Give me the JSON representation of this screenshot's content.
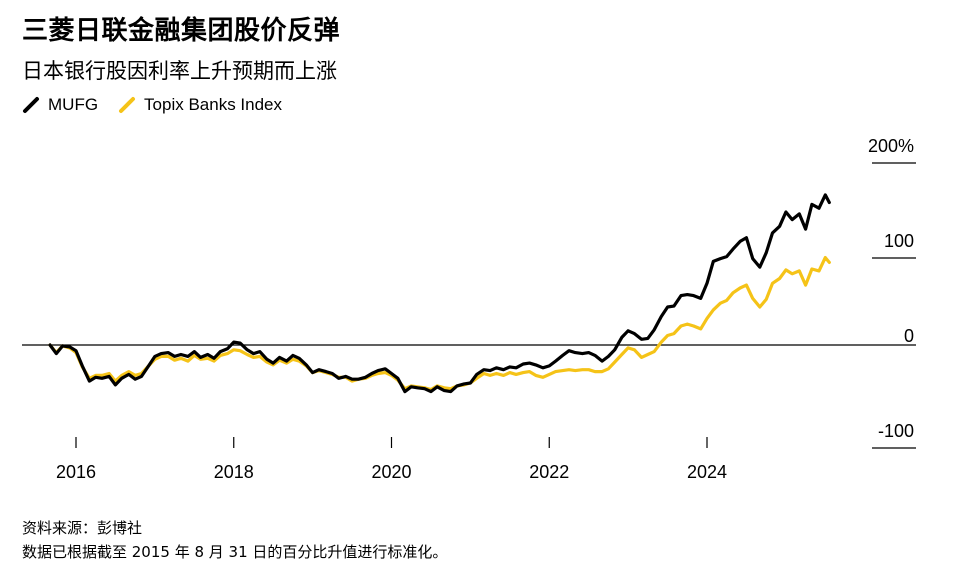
{
  "title": "三菱日联金融集团股价反弹",
  "subtitle": "日本银行股因利率上升预期而上涨",
  "source": "资料来源：彭博社",
  "note": "数据已根据截至 2015 年 8 月 31 日的百分比升值进行标准化。",
  "colors": {
    "mufg": "#000000",
    "topix": "#f5c318",
    "grid": "#000000",
    "zero": "#000000"
  },
  "chart_data": {
    "type": "line",
    "title": "三菱日联金融集团股价反弹",
    "subtitle": "日本银行股因利率上升预期而上涨",
    "xlim": [
      2015.6,
      2026.4
    ],
    "ylim": [
      -110,
      200
    ],
    "x_ticks": [
      {
        "value": 2016,
        "label": "2016"
      },
      {
        "value": 2018,
        "label": "2018"
      },
      {
        "value": 2020,
        "label": "2020"
      },
      {
        "value": 2022,
        "label": "2022"
      },
      {
        "value": 2024,
        "label": "2024"
      }
    ],
    "y_ticks": [
      {
        "value": 200,
        "label": "200%"
      },
      {
        "value": 100,
        "label": "100"
      },
      {
        "value": 0,
        "label": "0"
      },
      {
        "value": -100,
        "label": "-100"
      }
    ],
    "legend_position": "top-left",
    "series": [
      {
        "name": "MUFG",
        "color": "#000000",
        "points": [
          [
            2015.67,
            0
          ],
          [
            2015.75,
            -9
          ],
          [
            2015.83,
            -1
          ],
          [
            2015.92,
            -2
          ],
          [
            2016.0,
            -6
          ],
          [
            2016.08,
            -22
          ],
          [
            2016.17,
            -38
          ],
          [
            2016.25,
            -34
          ],
          [
            2016.33,
            -35
          ],
          [
            2016.42,
            -33
          ],
          [
            2016.5,
            -42
          ],
          [
            2016.58,
            -35
          ],
          [
            2016.67,
            -31
          ],
          [
            2016.75,
            -36
          ],
          [
            2016.83,
            -33
          ],
          [
            2016.92,
            -22
          ],
          [
            2017.0,
            -12
          ],
          [
            2017.08,
            -9
          ],
          [
            2017.17,
            -8
          ],
          [
            2017.25,
            -12
          ],
          [
            2017.33,
            -10
          ],
          [
            2017.42,
            -12
          ],
          [
            2017.5,
            -7
          ],
          [
            2017.58,
            -13
          ],
          [
            2017.67,
            -10
          ],
          [
            2017.75,
            -14
          ],
          [
            2017.83,
            -7
          ],
          [
            2017.92,
            -4
          ],
          [
            2018.0,
            3
          ],
          [
            2018.08,
            2
          ],
          [
            2018.17,
            -5
          ],
          [
            2018.25,
            -9
          ],
          [
            2018.33,
            -7
          ],
          [
            2018.42,
            -15
          ],
          [
            2018.5,
            -19
          ],
          [
            2018.58,
            -13
          ],
          [
            2018.67,
            -17
          ],
          [
            2018.75,
            -11
          ],
          [
            2018.83,
            -14
          ],
          [
            2018.92,
            -21
          ],
          [
            2019.0,
            -29
          ],
          [
            2019.08,
            -26
          ],
          [
            2019.17,
            -28
          ],
          [
            2019.25,
            -30
          ],
          [
            2019.33,
            -35
          ],
          [
            2019.42,
            -33
          ],
          [
            2019.5,
            -36
          ],
          [
            2019.58,
            -36
          ],
          [
            2019.67,
            -34
          ],
          [
            2019.75,
            -30
          ],
          [
            2019.83,
            -27
          ],
          [
            2019.92,
            -25
          ],
          [
            2020.0,
            -30
          ],
          [
            2020.08,
            -35
          ],
          [
            2020.17,
            -49
          ],
          [
            2020.25,
            -44
          ],
          [
            2020.33,
            -45
          ],
          [
            2020.42,
            -46
          ],
          [
            2020.5,
            -49
          ],
          [
            2020.58,
            -44
          ],
          [
            2020.67,
            -48
          ],
          [
            2020.75,
            -49
          ],
          [
            2020.83,
            -43
          ],
          [
            2020.92,
            -41
          ],
          [
            2021.0,
            -40
          ],
          [
            2021.08,
            -31
          ],
          [
            2021.17,
            -26
          ],
          [
            2021.25,
            -27
          ],
          [
            2021.33,
            -24
          ],
          [
            2021.42,
            -26
          ],
          [
            2021.5,
            -23
          ],
          [
            2021.58,
            -24
          ],
          [
            2021.67,
            -20
          ],
          [
            2021.75,
            -19
          ],
          [
            2021.83,
            -21
          ],
          [
            2021.92,
            -24
          ],
          [
            2022.0,
            -22
          ],
          [
            2022.08,
            -17
          ],
          [
            2022.17,
            -11
          ],
          [
            2022.25,
            -6
          ],
          [
            2022.33,
            -8
          ],
          [
            2022.42,
            -9
          ],
          [
            2022.5,
            -8
          ],
          [
            2022.58,
            -11
          ],
          [
            2022.67,
            -17
          ],
          [
            2022.75,
            -12
          ],
          [
            2022.83,
            -5
          ],
          [
            2022.92,
            8
          ],
          [
            2023.0,
            15
          ],
          [
            2023.08,
            12
          ],
          [
            2023.17,
            6
          ],
          [
            2023.25,
            7
          ],
          [
            2023.33,
            16
          ],
          [
            2023.42,
            30
          ],
          [
            2023.5,
            40
          ],
          [
            2023.58,
            41
          ],
          [
            2023.67,
            52
          ],
          [
            2023.75,
            53
          ],
          [
            2023.83,
            52
          ],
          [
            2023.92,
            49
          ],
          [
            2024.0,
            65
          ],
          [
            2024.08,
            88
          ],
          [
            2024.17,
            91
          ],
          [
            2024.25,
            93
          ],
          [
            2024.33,
            101
          ],
          [
            2024.42,
            109
          ],
          [
            2024.5,
            113
          ],
          [
            2024.58,
            91
          ],
          [
            2024.67,
            82
          ],
          [
            2024.75,
            97
          ],
          [
            2024.83,
            118
          ],
          [
            2024.92,
            125
          ],
          [
            2025.0,
            140
          ],
          [
            2025.08,
            132
          ],
          [
            2025.17,
            138
          ],
          [
            2025.25,
            122
          ],
          [
            2025.33,
            148
          ],
          [
            2025.42,
            144
          ],
          [
            2025.5,
            158
          ],
          [
            2025.55,
            150
          ]
        ]
      },
      {
        "name": "Topix Banks Index",
        "color": "#f5c318",
        "points": [
          [
            2015.67,
            0
          ],
          [
            2015.75,
            -8
          ],
          [
            2015.83,
            -1
          ],
          [
            2015.92,
            -3
          ],
          [
            2016.0,
            -8
          ],
          [
            2016.08,
            -23
          ],
          [
            2016.17,
            -35
          ],
          [
            2016.25,
            -32
          ],
          [
            2016.33,
            -32
          ],
          [
            2016.42,
            -30
          ],
          [
            2016.5,
            -38
          ],
          [
            2016.58,
            -32
          ],
          [
            2016.67,
            -28
          ],
          [
            2016.75,
            -32
          ],
          [
            2016.83,
            -30
          ],
          [
            2016.92,
            -22
          ],
          [
            2017.0,
            -15
          ],
          [
            2017.08,
            -12
          ],
          [
            2017.17,
            -12
          ],
          [
            2017.25,
            -16
          ],
          [
            2017.33,
            -14
          ],
          [
            2017.42,
            -17
          ],
          [
            2017.5,
            -11
          ],
          [
            2017.58,
            -15
          ],
          [
            2017.67,
            -14
          ],
          [
            2017.75,
            -17
          ],
          [
            2017.83,
            -11
          ],
          [
            2017.92,
            -9
          ],
          [
            2018.0,
            -5
          ],
          [
            2018.08,
            -6
          ],
          [
            2018.17,
            -10
          ],
          [
            2018.25,
            -13
          ],
          [
            2018.33,
            -12
          ],
          [
            2018.42,
            -18
          ],
          [
            2018.5,
            -21
          ],
          [
            2018.58,
            -16
          ],
          [
            2018.67,
            -19
          ],
          [
            2018.75,
            -15
          ],
          [
            2018.83,
            -17
          ],
          [
            2018.92,
            -22
          ],
          [
            2019.0,
            -29
          ],
          [
            2019.08,
            -27
          ],
          [
            2019.17,
            -29
          ],
          [
            2019.25,
            -31
          ],
          [
            2019.33,
            -34
          ],
          [
            2019.42,
            -34
          ],
          [
            2019.5,
            -38
          ],
          [
            2019.58,
            -36
          ],
          [
            2019.67,
            -35
          ],
          [
            2019.75,
            -32
          ],
          [
            2019.83,
            -30
          ],
          [
            2019.92,
            -29
          ],
          [
            2020.0,
            -32
          ],
          [
            2020.08,
            -37
          ],
          [
            2020.17,
            -46
          ],
          [
            2020.25,
            -43
          ],
          [
            2020.33,
            -44
          ],
          [
            2020.42,
            -45
          ],
          [
            2020.5,
            -47
          ],
          [
            2020.58,
            -43
          ],
          [
            2020.67,
            -45
          ],
          [
            2020.75,
            -46
          ],
          [
            2020.83,
            -43
          ],
          [
            2020.92,
            -42
          ],
          [
            2021.0,
            -40
          ],
          [
            2021.08,
            -35
          ],
          [
            2021.17,
            -30
          ],
          [
            2021.25,
            -32
          ],
          [
            2021.33,
            -30
          ],
          [
            2021.42,
            -32
          ],
          [
            2021.5,
            -29
          ],
          [
            2021.58,
            -31
          ],
          [
            2021.67,
            -29
          ],
          [
            2021.75,
            -28
          ],
          [
            2021.83,
            -32
          ],
          [
            2021.92,
            -34
          ],
          [
            2022.0,
            -31
          ],
          [
            2022.08,
            -28
          ],
          [
            2022.17,
            -27
          ],
          [
            2022.25,
            -26
          ],
          [
            2022.33,
            -27
          ],
          [
            2022.42,
            -26
          ],
          [
            2022.5,
            -26
          ],
          [
            2022.58,
            -28
          ],
          [
            2022.67,
            -28
          ],
          [
            2022.75,
            -25
          ],
          [
            2022.83,
            -18
          ],
          [
            2022.92,
            -10
          ],
          [
            2023.0,
            -3
          ],
          [
            2023.08,
            -5
          ],
          [
            2023.17,
            -13
          ],
          [
            2023.25,
            -10
          ],
          [
            2023.33,
            -7
          ],
          [
            2023.42,
            3
          ],
          [
            2023.5,
            10
          ],
          [
            2023.58,
            12
          ],
          [
            2023.67,
            20
          ],
          [
            2023.75,
            22
          ],
          [
            2023.83,
            20
          ],
          [
            2023.92,
            17
          ],
          [
            2024.0,
            28
          ],
          [
            2024.08,
            37
          ],
          [
            2024.17,
            44
          ],
          [
            2024.25,
            47
          ],
          [
            2024.33,
            55
          ],
          [
            2024.42,
            60
          ],
          [
            2024.5,
            63
          ],
          [
            2024.58,
            49
          ],
          [
            2024.67,
            40
          ],
          [
            2024.75,
            48
          ],
          [
            2024.83,
            65
          ],
          [
            2024.92,
            70
          ],
          [
            2025.0,
            79
          ],
          [
            2025.08,
            75
          ],
          [
            2025.17,
            78
          ],
          [
            2025.25,
            63
          ],
          [
            2025.33,
            80
          ],
          [
            2025.42,
            78
          ],
          [
            2025.5,
            92
          ],
          [
            2025.55,
            87
          ]
        ]
      }
    ]
  }
}
